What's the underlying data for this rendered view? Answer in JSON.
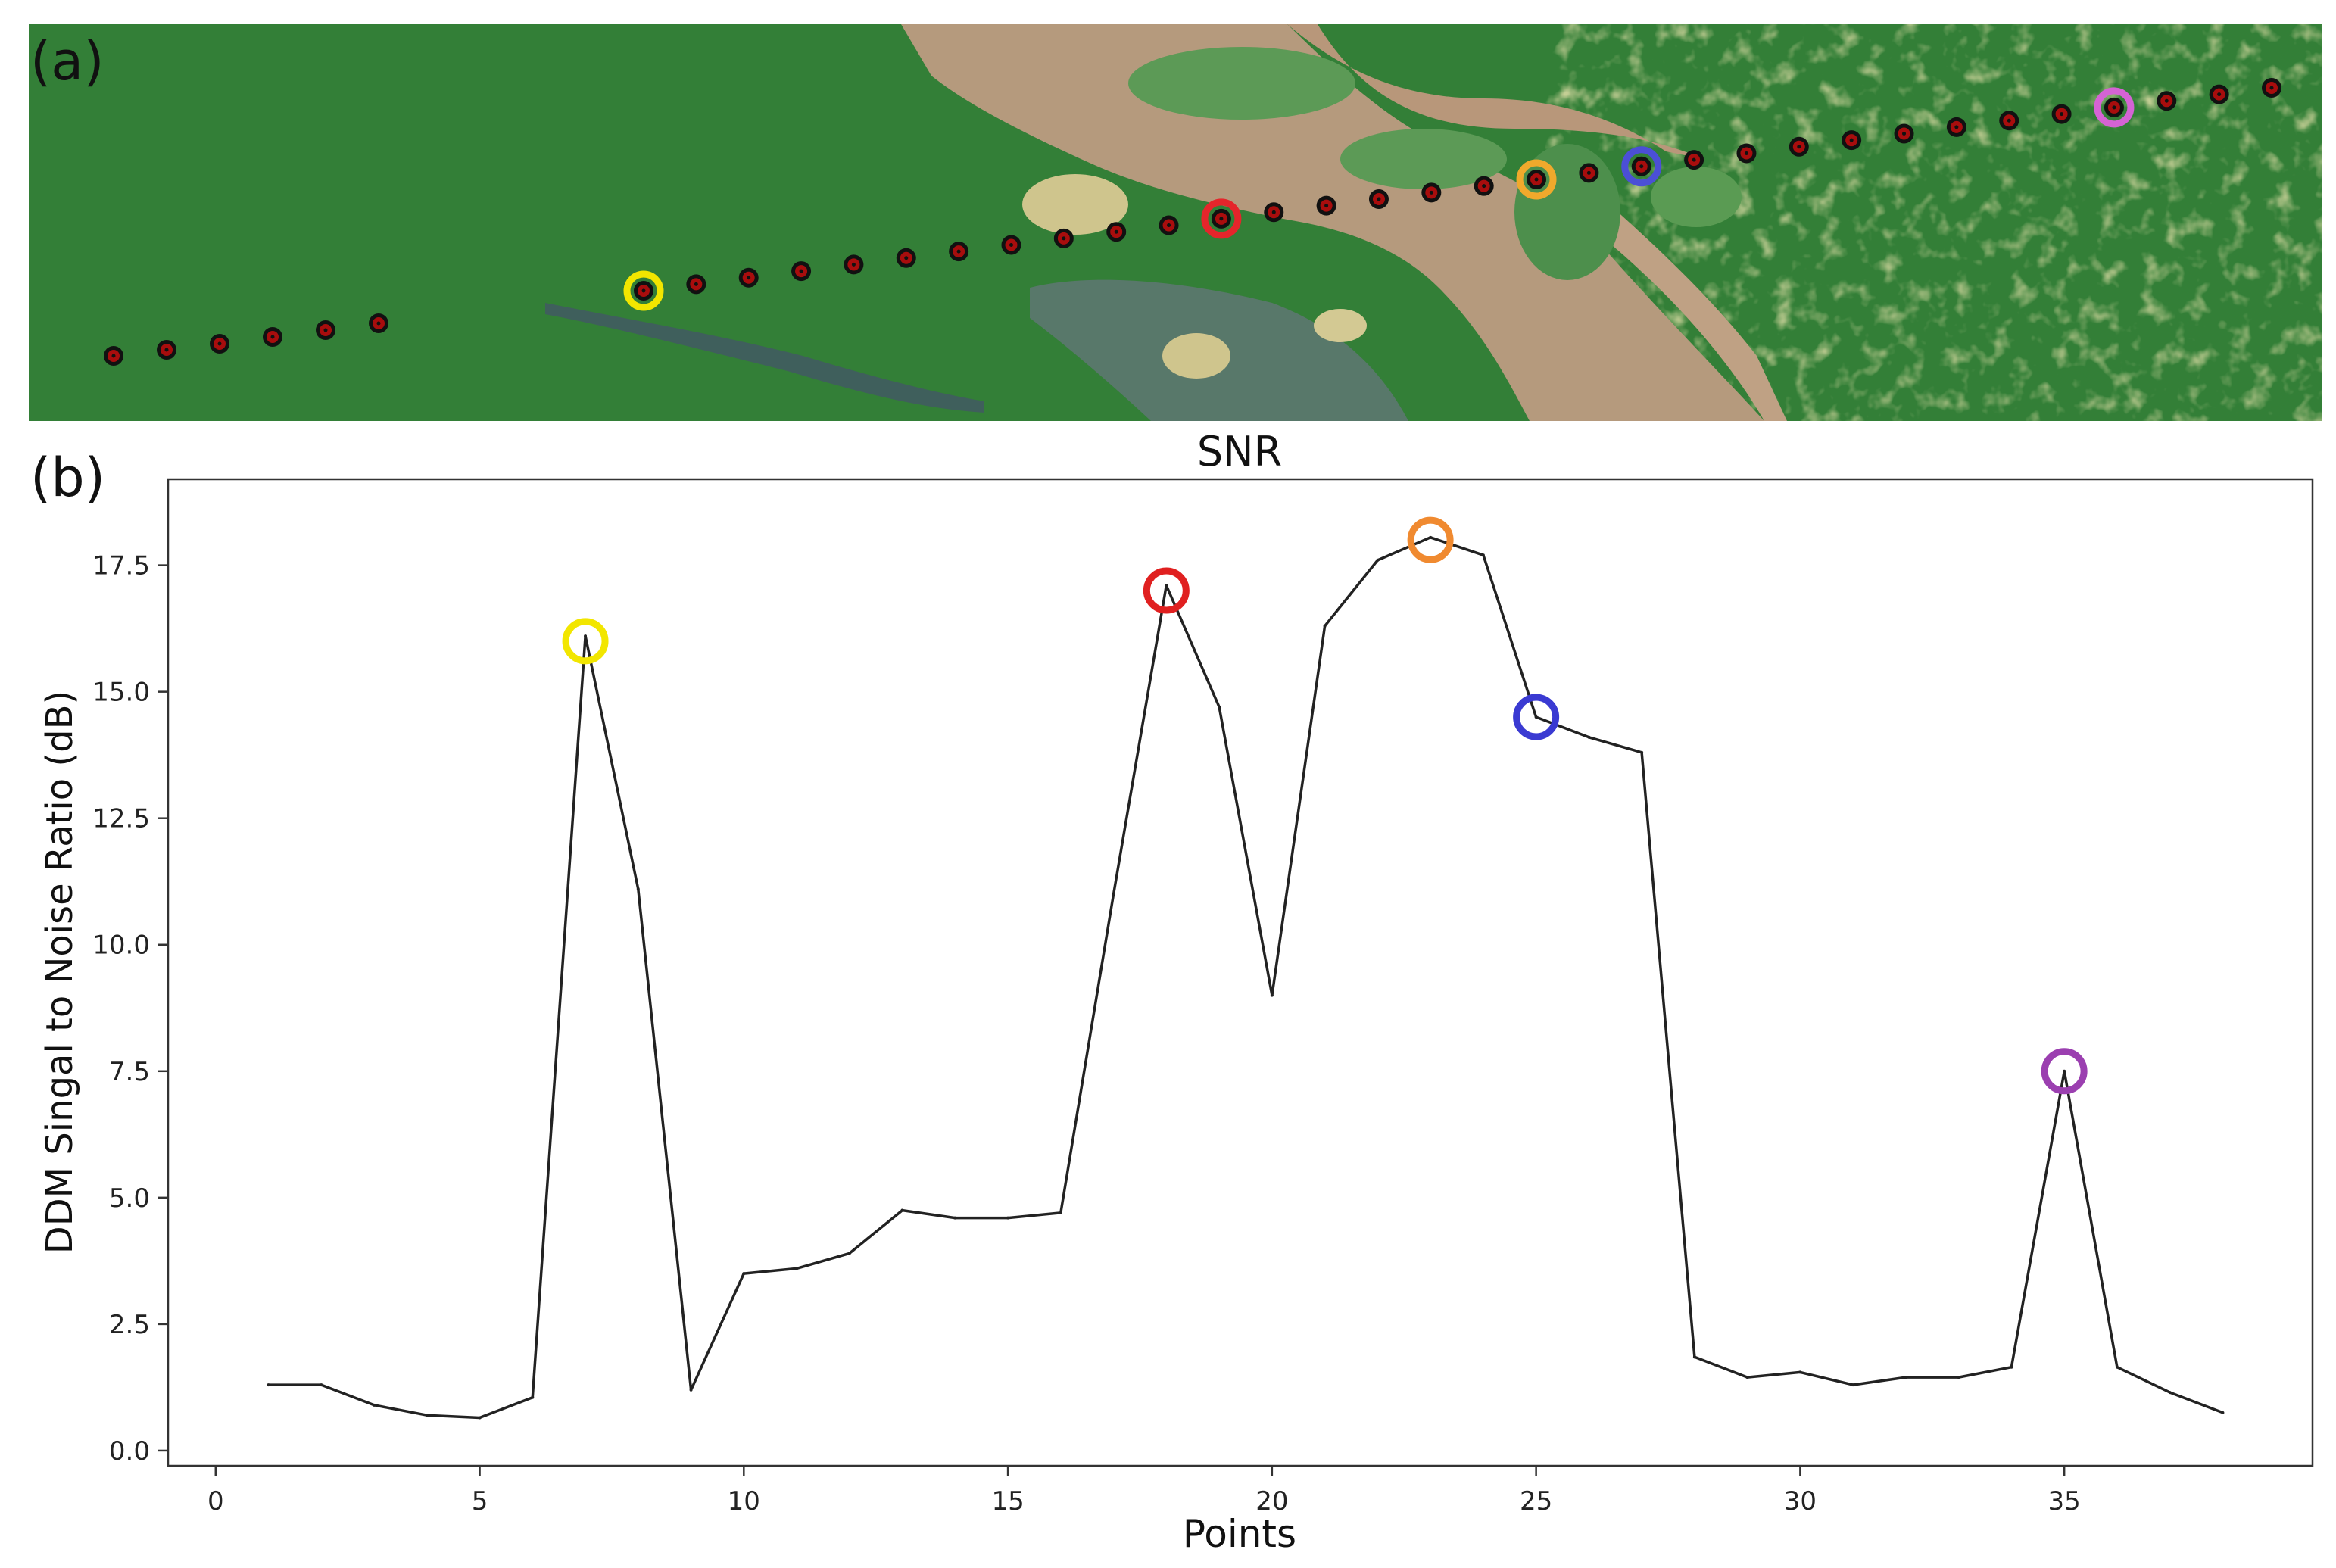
{
  "panel_labels": {
    "a": "(a)",
    "b": "(b)"
  },
  "map_panel": {
    "track_point_color": "#a80d0d",
    "land_color": "#2f7a34",
    "river_color": "#b59a7d",
    "highlight_colors": {
      "yellow": "#f2e600",
      "red": "#e5252b",
      "orange": "#f0a92c",
      "blue": "#4b4fd6",
      "magenta": "#d563d4"
    }
  },
  "chart_data": {
    "type": "line",
    "title": "SNR",
    "xlabel": "Points",
    "ylabel": "DDM Singal to Noise Ratio (dB)",
    "xlim": [
      -0.9,
      39.7
    ],
    "ylim": [
      -0.3,
      19.2
    ],
    "xticks": [
      0,
      5,
      10,
      15,
      20,
      25,
      30,
      35
    ],
    "yticks": [
      0.0,
      2.5,
      5.0,
      7.5,
      10.0,
      12.5,
      15.0,
      17.5
    ],
    "ytick_labels": [
      "0.0",
      "2.5",
      "5.0",
      "7.5",
      "10.0",
      "12.5",
      "15.0",
      "17.5"
    ],
    "grid": false,
    "line_color": "#222222",
    "x": [
      1,
      2,
      3,
      4,
      5,
      6,
      7,
      8,
      9,
      10,
      11,
      12,
      13,
      14,
      15,
      16,
      17,
      18,
      19,
      20,
      21,
      22,
      23,
      24,
      25,
      26,
      27,
      28,
      29,
      30,
      31,
      32,
      33,
      34,
      35,
      36,
      37,
      38
    ],
    "y": [
      1.3,
      1.3,
      0.9,
      0.7,
      0.65,
      1.05,
      16.1,
      11.1,
      1.2,
      3.5,
      3.6,
      3.9,
      4.75,
      4.6,
      4.6,
      4.7,
      11.0,
      17.1,
      14.7,
      9.0,
      16.3,
      17.6,
      18.05,
      17.7,
      14.5,
      14.1,
      13.8,
      1.85,
      1.45,
      1.55,
      1.3,
      1.45,
      1.45,
      1.65,
      7.5,
      1.65,
      1.15,
      0.75
    ],
    "highlights": [
      {
        "x": 7,
        "y": 16.0,
        "color": "#f2e600"
      },
      {
        "x": 18,
        "y": 17.0,
        "color": "#e02020"
      },
      {
        "x": 23,
        "y": 18.0,
        "color": "#f08a30"
      },
      {
        "x": 25,
        "y": 14.5,
        "color": "#3a3ad2"
      },
      {
        "x": 35,
        "y": 7.5,
        "color": "#9b3fb0"
      }
    ]
  }
}
